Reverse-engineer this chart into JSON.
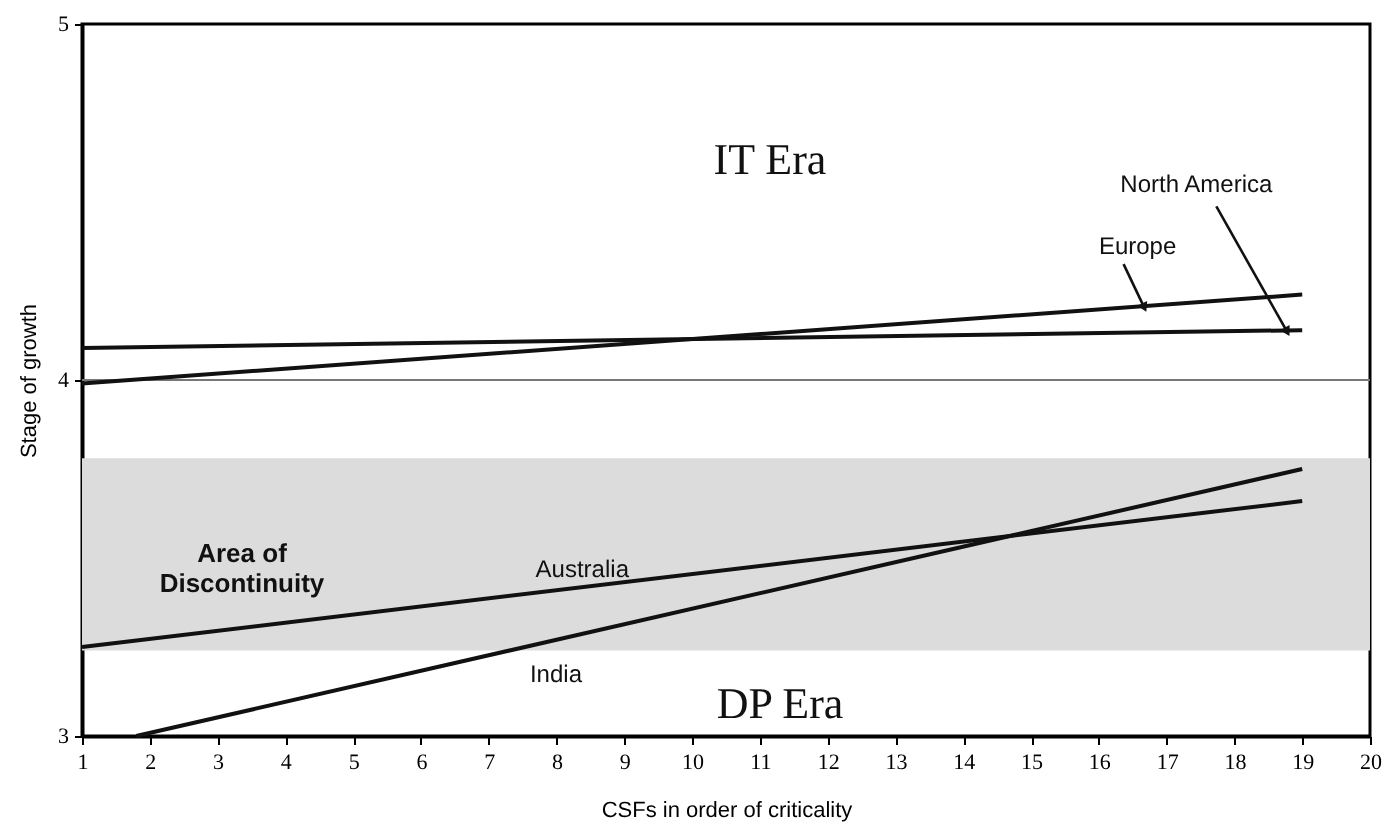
{
  "chart_data": {
    "type": "line",
    "xlabel": "CSFs in order of criticality",
    "ylabel": "Stage of growth",
    "xlim": [
      1,
      20
    ],
    "ylim": [
      3,
      5
    ],
    "xticks": [
      1,
      2,
      3,
      4,
      5,
      6,
      7,
      8,
      9,
      10,
      11,
      12,
      13,
      14,
      15,
      16,
      17,
      18,
      19,
      20
    ],
    "yticks": [
      3,
      4,
      5
    ],
    "grid": false,
    "marker": "none",
    "line_style": "solid",
    "series": [
      {
        "name": "North America",
        "color": "#111111",
        "x": [
          1,
          19
        ],
        "values": [
          4.09,
          4.14
        ]
      },
      {
        "name": "Europe",
        "color": "#111111",
        "x": [
          1,
          19
        ],
        "values": [
          3.99,
          4.24
        ]
      },
      {
        "name": "Australia",
        "color": "#111111",
        "x": [
          1,
          19
        ],
        "values": [
          3.25,
          3.66
        ]
      },
      {
        "name": "India",
        "color": "#111111",
        "x": [
          1.8,
          19
        ],
        "values": [
          3.0,
          3.75
        ]
      }
    ],
    "ref_lines": [
      {
        "axis": "y",
        "value": 4,
        "color": "#777777"
      }
    ],
    "bands": [
      {
        "axis": "y",
        "from": 3.24,
        "to": 3.78,
        "label": "Area of\nDiscontinuity",
        "color": "#dcdcdc"
      }
    ],
    "annotations": [
      "IT Era",
      "DP Era"
    ]
  }
}
